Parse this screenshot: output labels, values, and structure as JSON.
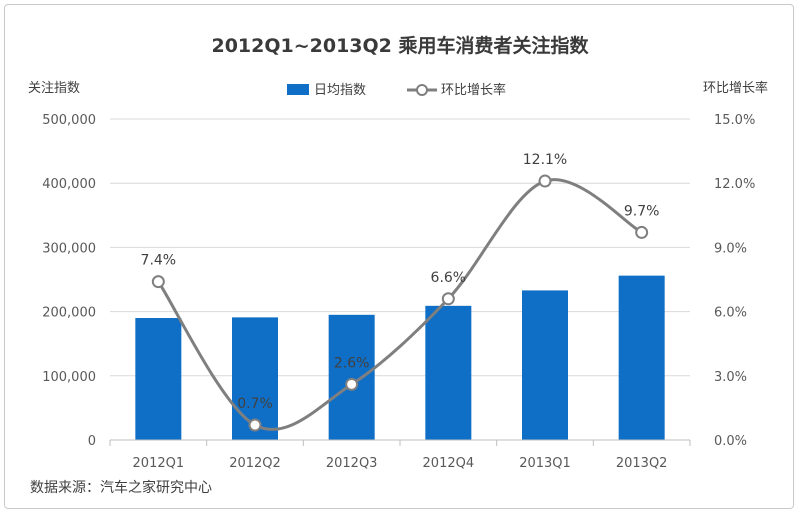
{
  "colors": {
    "bar": "#0f6fc6",
    "line": "#7f7f7f",
    "grid": "#d9d9d9",
    "axis": "#bfbfbf"
  },
  "source_note": "数据来源：汽车之家研究中心",
  "chart_data": {
    "type": "bar",
    "title": "2012Q1~2013Q2  乘用车消费者关注指数",
    "categories": [
      "2012Q1",
      "2012Q2",
      "2012Q3",
      "2012Q4",
      "2013Q1",
      "2013Q2"
    ],
    "ylabel_left": "关注指数",
    "ylabel_right": "环比增长率",
    "ylim_left": [
      0,
      500000
    ],
    "ylim_right": [
      0,
      15
    ],
    "yticks_left": [
      "0",
      "100,000",
      "200,000",
      "300,000",
      "400,000",
      "500,000"
    ],
    "yticks_right": [
      "0.0%",
      "3.0%",
      "6.0%",
      "9.0%",
      "12.0%",
      "15.0%"
    ],
    "legend_position": "top",
    "grid": true,
    "series": [
      {
        "name": "日均指数",
        "kind": "bar",
        "axis": "left",
        "values": [
          190000,
          191000,
          195000,
          209000,
          233000,
          256000
        ]
      },
      {
        "name": "环比增长率",
        "kind": "line",
        "axis": "right",
        "smooth": true,
        "marker": "hollow-circle",
        "values": [
          7.4,
          0.7,
          2.6,
          6.6,
          12.1,
          9.7
        ],
        "labels": [
          "7.4%",
          "0.7%",
          "2.6%",
          "6.6%",
          "12.1%",
          "9.7%"
        ]
      }
    ]
  }
}
